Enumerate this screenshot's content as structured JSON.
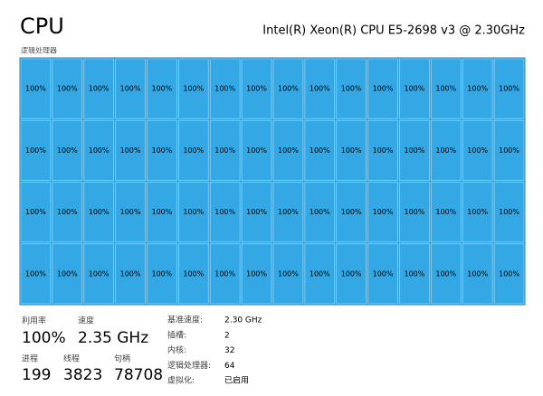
{
  "header": {
    "title": "CPU",
    "processor": "Intel(R) Xeon(R) CPU E5-2698 v3 @ 2.30GHz"
  },
  "grid": {
    "label": "逻辑处理器",
    "columns": 16,
    "cells": [
      "100%",
      "100%",
      "100%",
      "100%",
      "100%",
      "100%",
      "100%",
      "100%",
      "100%",
      "100%",
      "100%",
      "100%",
      "100%",
      "100%",
      "100%",
      "100%",
      "100%",
      "100%",
      "100%",
      "100%",
      "100%",
      "100%",
      "100%",
      "100%",
      "100%",
      "100%",
      "100%",
      "100%",
      "100%",
      "100%",
      "100%",
      "100%",
      "100%",
      "100%",
      "100%",
      "100%",
      "100%",
      "100%",
      "100%",
      "100%",
      "100%",
      "100%",
      "100%",
      "100%",
      "100%",
      "100%",
      "100%",
      "100%",
      "100%",
      "100%",
      "100%",
      "100%",
      "100%",
      "100%",
      "100%",
      "100%",
      "100%",
      "100%",
      "100%",
      "100%",
      "100%",
      "100%",
      "100%",
      "100%"
    ]
  },
  "stats": [
    {
      "label": "利用率",
      "value": "100%"
    },
    {
      "label": "速度",
      "value": "2.35 GHz"
    },
    {
      "label": "进程",
      "value": "199"
    },
    {
      "label": "线程",
      "value": "3823"
    },
    {
      "label": "句柄",
      "value": "78708"
    }
  ],
  "details": [
    {
      "label": "基准速度:",
      "value": "2.30 GHz"
    },
    {
      "label": "插槽:",
      "value": "2"
    },
    {
      "label": "内核:",
      "value": "32"
    },
    {
      "label": "逻辑处理器:",
      "value": "64"
    },
    {
      "label": "虚拟化:",
      "value": "已启用"
    }
  ]
}
